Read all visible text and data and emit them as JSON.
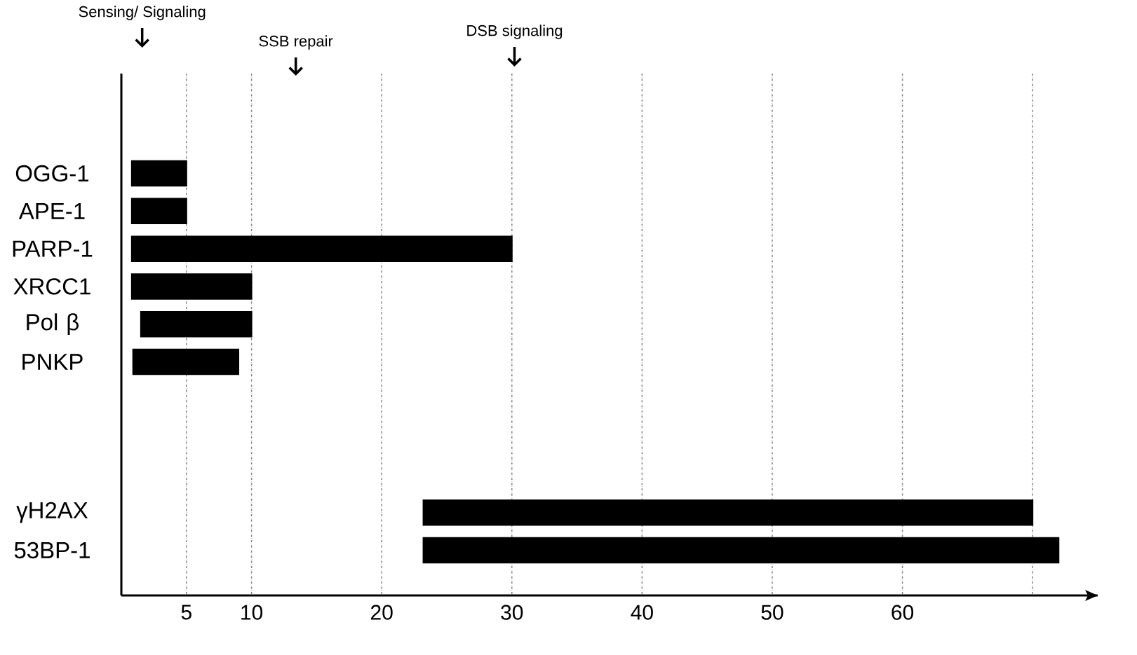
{
  "chart_data": {
    "type": "bar",
    "orientation": "horizontal",
    "categories": [
      "OGG-1",
      "APE-1",
      "PARP-1",
      "XRCC1",
      "Pol β",
      "PNKP",
      null,
      null,
      null,
      "γH2AX",
      "53BP-1"
    ],
    "base": [
      0.8,
      0.8,
      0.8,
      0.8,
      1.5,
      0.9,
      null,
      null,
      null,
      23.2,
      23.2
    ],
    "values": [
      4.2,
      4.2,
      29.2,
      9.2,
      8.5,
      8.1,
      null,
      null,
      null,
      46.8,
      48.8
    ],
    "color": "#000000",
    "xlim": [
      0,
      75
    ],
    "xticks": [
      5,
      10,
      20,
      30,
      40,
      50,
      60,
      {
        "value": 70,
        "label": null
      }
    ],
    "grid": "x",
    "annotations": [
      "Sensing/ Signaling",
      "SSB repair",
      "DSB signaling"
    ]
  }
}
